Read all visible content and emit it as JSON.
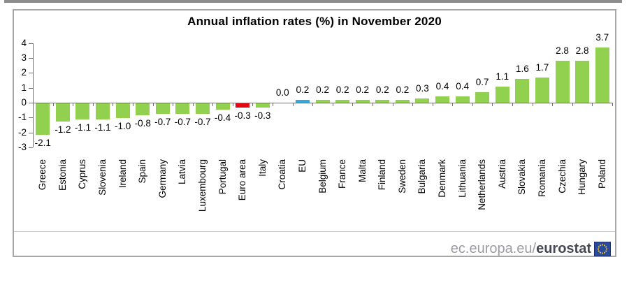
{
  "header": {
    "title": "Annual inflation rates (%) in November 2020"
  },
  "branding": {
    "url_prefix": "ec.europa.eu/",
    "url_suffix": "eurostat",
    "flag": "eu-flag-icon"
  },
  "colors": {
    "top_strip": "#8c8c8c",
    "frame_border": "#a6a6a6",
    "divider": "#c9c9c9",
    "axis_line": "#707070",
    "label_text": "#000000",
    "url_prefix_color": "#9b9ba4",
    "url_suffix_color": "#474756",
    "flag_blue": "#2c4a9c",
    "flag_border": "#1c2f6e",
    "flag_star": "#e3c324"
  },
  "chart_data": {
    "type": "bar",
    "title": "Annual inflation rates (%) in November 2020",
    "categories": [
      "Greece",
      "Estonia",
      "Cyprus",
      "Slovenia",
      "Ireland",
      "Spain",
      "Germany",
      "Latvia",
      "Luxembourg",
      "Portugal",
      "Euro area",
      "Italy",
      "Croatia",
      "EU",
      "Belgium",
      "France",
      "Malta",
      "Finland",
      "Sweden",
      "Bulgaria",
      "Denmark",
      "Lithuania",
      "Netherlands",
      "Austria",
      "Slovakia",
      "Romania",
      "Czechia",
      "Hungary",
      "Poland"
    ],
    "values": [
      -2.1,
      -1.2,
      -1.1,
      -1.1,
      -1.0,
      -0.8,
      -0.7,
      -0.7,
      -0.7,
      -0.4,
      -0.3,
      -0.3,
      0.0,
      0.2,
      0.2,
      0.2,
      0.2,
      0.2,
      0.2,
      0.3,
      0.4,
      0.4,
      0.7,
      1.1,
      1.6,
      1.7,
      2.8,
      2.8,
      3.7
    ],
    "value_label_format": "one decimal, outside end of bar",
    "bar_color_default": "#92d050",
    "bar_color_overrides": {
      "Euro area": "#e30613",
      "EU": "#35a9dc"
    },
    "xlabel": "",
    "ylabel": "",
    "ylim": [
      -3,
      4
    ],
    "yticks": [
      4,
      3,
      2,
      1,
      0,
      -1,
      -2,
      -3
    ],
    "grid": false,
    "legend": false,
    "x_tick_label_rotation": "vertical (bottom to top)"
  }
}
